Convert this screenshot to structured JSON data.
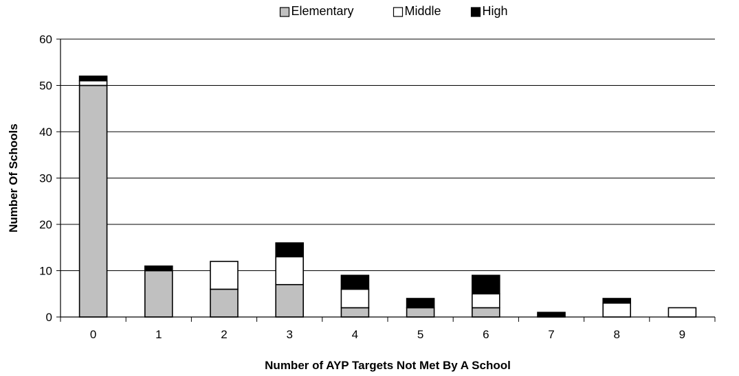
{
  "chart_data": {
    "type": "bar",
    "stacked": true,
    "categories": [
      "0",
      "1",
      "2",
      "3",
      "4",
      "5",
      "6",
      "7",
      "8",
      "9"
    ],
    "series": [
      {
        "name": "Elementary",
        "color": "#c0c0c0",
        "values": [
          50,
          10,
          6,
          7,
          2,
          2,
          2,
          0,
          0,
          0
        ]
      },
      {
        "name": "Middle",
        "color": "#ffffff",
        "values": [
          1,
          0,
          6,
          6,
          4,
          0,
          3,
          0,
          3,
          2
        ]
      },
      {
        "name": "High",
        "color": "#000000",
        "values": [
          1,
          1,
          0,
          3,
          3,
          2,
          4,
          1,
          1,
          0
        ]
      }
    ],
    "xlabel": "Number of AYP Targets Not Met By A School",
    "ylabel": "Number Of Schools",
    "ylim": [
      0,
      60
    ],
    "yticks": [
      0,
      10,
      20,
      30,
      40,
      50,
      60
    ],
    "grid": true,
    "legend_position": "top"
  }
}
